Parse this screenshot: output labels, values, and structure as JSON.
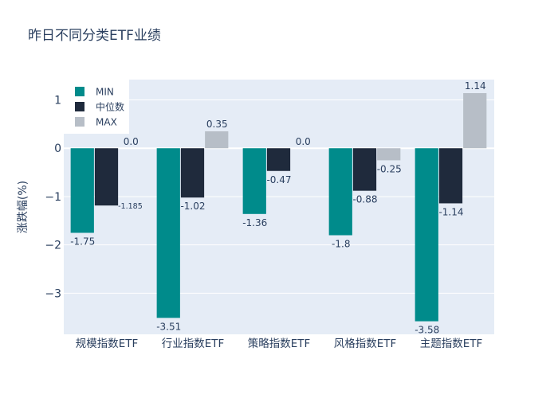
{
  "chart_data": {
    "type": "bar",
    "title": "昨日不同分类ETF业绩",
    "xlabel": "",
    "ylabel": "涨跌幅(%)",
    "ylim": [
      -3.85,
      1.42
    ],
    "yticks": [
      1,
      0,
      -1,
      -2,
      -3
    ],
    "ytick_labels": [
      "1",
      "0",
      "−1",
      "−2",
      "−3"
    ],
    "categories": [
      "规模指数ETF",
      "行业指数ETF",
      "策略指数ETF",
      "风格指数ETF",
      "主题指数ETF"
    ],
    "series": [
      {
        "name": "MIN",
        "color": "#008b8b",
        "values": [
          -1.75,
          -3.51,
          -1.36,
          -1.8,
          -3.58
        ],
        "labels": [
          "-1.75",
          "-3.51",
          "-1.36",
          "-1.8",
          "-3.58"
        ]
      },
      {
        "name": "中位数",
        "color": "#1f2a3c",
        "values": [
          -1.185,
          -1.02,
          -0.47,
          -0.88,
          -1.14
        ],
        "labels": [
          "-1.185",
          "-1.02",
          "-0.47",
          "-0.88",
          "-1.14"
        ]
      },
      {
        "name": "MAX",
        "color": "#b7bec7",
        "values": [
          0.0,
          0.35,
          0.0,
          -0.25,
          1.14
        ],
        "labels": [
          "0.0",
          "0.35",
          "0.0",
          "-0.25",
          "1.14"
        ]
      }
    ],
    "legend_position": "top-left",
    "grid": true,
    "plot_bgcolor": "#e5ecf6"
  }
}
